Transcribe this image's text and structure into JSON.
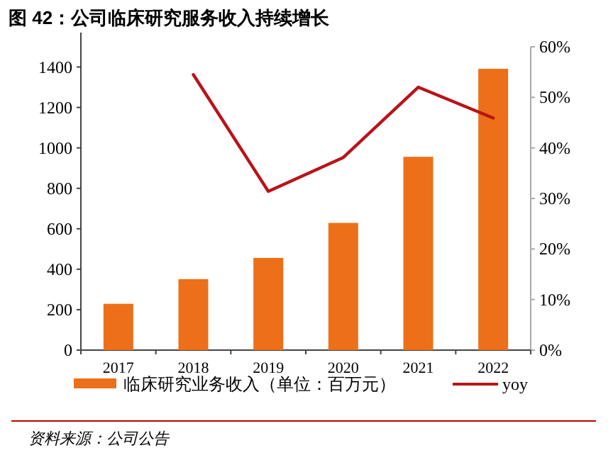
{
  "chart_data": {
    "type": "bar",
    "title": "图 42：公司临床研究服务收入持续增长",
    "categories": [
      "2017",
      "2018",
      "2019",
      "2020",
      "2021",
      "2022"
    ],
    "series": [
      {
        "name": "临床研究业务收入（单位：百万元）",
        "color": "#ed6f1a",
        "values": [
          229,
          351,
          456,
          629,
          956,
          1391
        ]
      },
      {
        "name": "yoy",
        "type": "line",
        "axis": "y2",
        "color": "#b81418",
        "values": [
          null,
          54.5,
          31.4,
          38.1,
          52.0,
          45.9
        ]
      }
    ],
    "ylim": [
      0,
      1500
    ],
    "yticks": [
      0,
      200,
      400,
      600,
      800,
      1000,
      1200,
      1400
    ],
    "y2lim": [
      0,
      60
    ],
    "y2ticks": [
      {
        "value": 0,
        "label": "0%"
      },
      {
        "value": 10,
        "label": "10%"
      },
      {
        "value": 20,
        "label": "20%"
      },
      {
        "value": 30,
        "label": "30%"
      },
      {
        "value": 40,
        "label": "40%"
      },
      {
        "value": 50,
        "label": "50%"
      },
      {
        "value": 60,
        "label": "60%"
      }
    ],
    "legend": "bottom",
    "grid": false,
    "annotations": [
      "资料来源：公司公告"
    ]
  }
}
